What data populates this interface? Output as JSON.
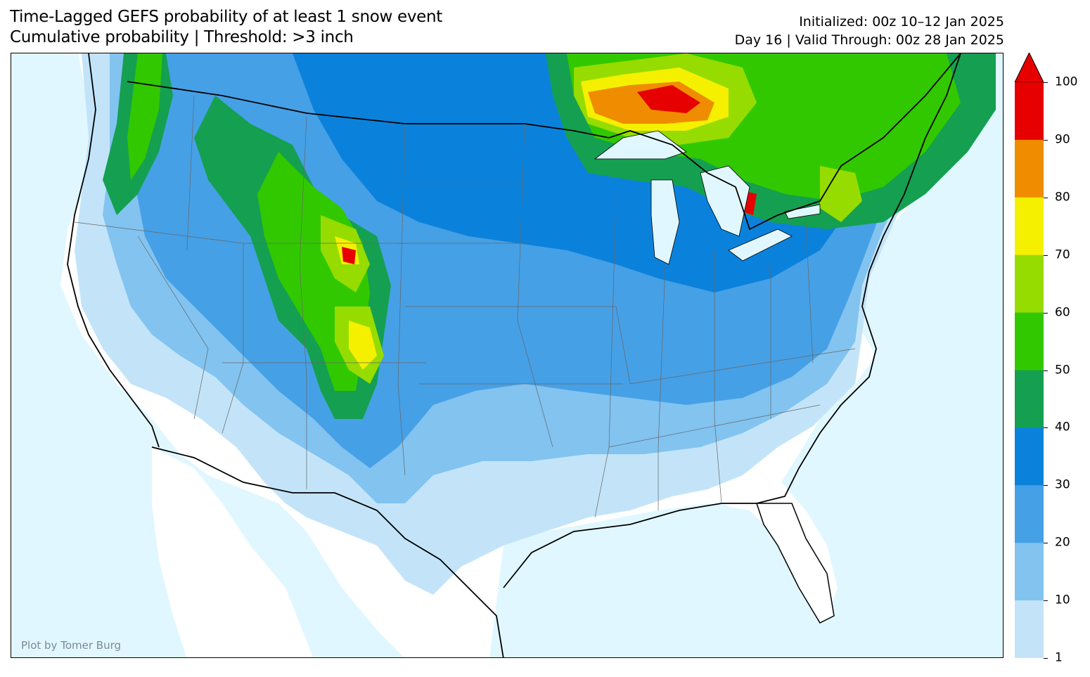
{
  "title": {
    "line1": "Time-Lagged GEFS probability of at least 1 snow event",
    "line2": "Cumulative probability | Threshold: >3 inch"
  },
  "meta": {
    "line1": "Initialized: 00z 10–12 Jan 2025",
    "line2": "Day 16 | Valid Through: 00z 28 Jan 2025"
  },
  "credit": "Plot by Tomer Burg",
  "colorbar": {
    "labels": [
      "100",
      "90",
      "80",
      "70",
      "60",
      "50",
      "40",
      "30",
      "20",
      "10",
      "1"
    ],
    "colors": [
      "#e60000",
      "#f08c00",
      "#f5f000",
      "#96dc00",
      "#32c800",
      "#14a050",
      "#0a82dc",
      "#46a0e6",
      "#82c3f0",
      "#c3e4f8"
    ]
  },
  "colors": {
    "ocean": "#e1f7ff",
    "land_low": "#ffffff"
  }
}
